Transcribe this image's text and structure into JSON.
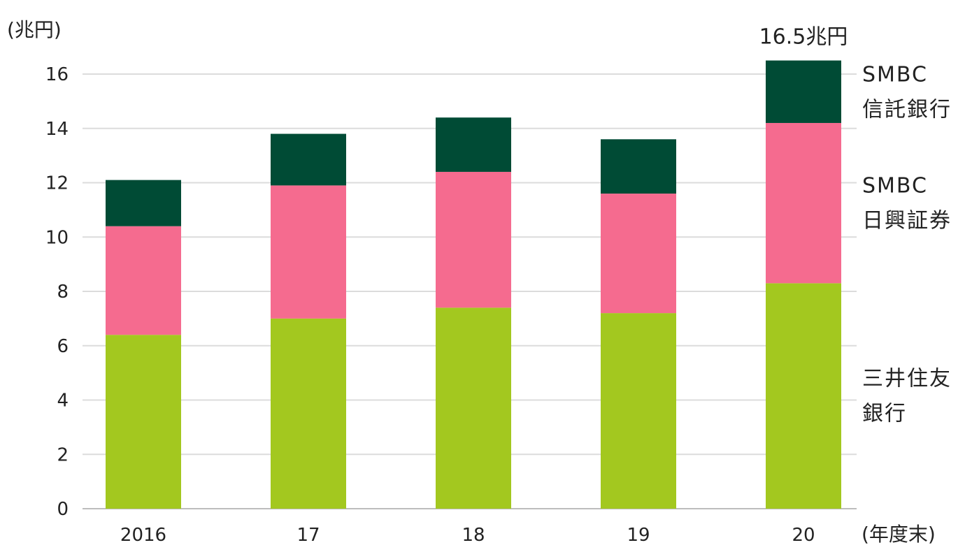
{
  "chart_data": {
    "type": "bar",
    "stacked": true,
    "y_unit_label": "(兆円)",
    "x_unit_label": "(年度末)",
    "categories": [
      "2016",
      "17",
      "18",
      "19",
      "20"
    ],
    "ylim": [
      0,
      16
    ],
    "yticks": [
      0,
      2,
      4,
      6,
      8,
      10,
      12,
      14,
      16
    ],
    "grid": true,
    "series": [
      {
        "name": "三井住友銀行",
        "legend_label_lines": [
          "三井住友",
          "銀行"
        ],
        "color": "#a3c81f",
        "values": [
          6.4,
          7.0,
          7.4,
          7.2,
          8.3
        ]
      },
      {
        "name": "SMBC日興証券",
        "legend_label_lines": [
          "SMBC",
          "日興証券"
        ],
        "color": "#f56b8f",
        "values": [
          4.0,
          4.9,
          5.0,
          4.4,
          5.9
        ]
      },
      {
        "name": "SMBC信託銀行",
        "legend_label_lines": [
          "SMBC",
          "信託銀行"
        ],
        "color": "#004b35",
        "values": [
          1.7,
          1.9,
          2.0,
          2.0,
          2.3
        ]
      }
    ],
    "annotation": {
      "category": "20",
      "text": "16.5兆円",
      "value": 16.5
    },
    "legend_placement": "right"
  }
}
